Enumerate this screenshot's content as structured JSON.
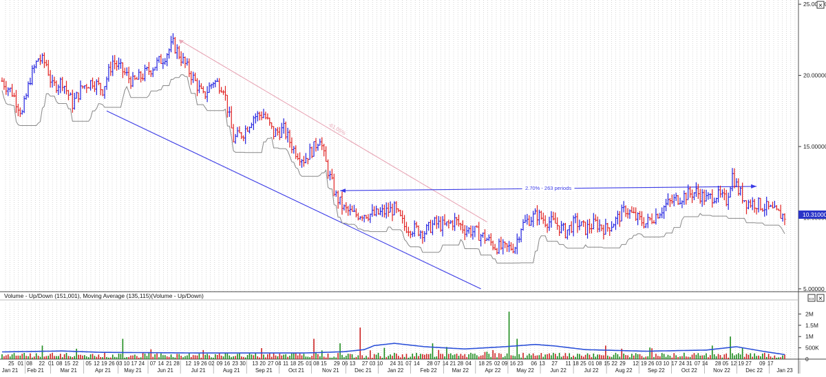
{
  "chart_data": [
    {
      "type": "bar",
      "ylim": [
        4.8,
        25.2
      ],
      "y_ticks": [
        "25.00000",
        "20.00000",
        "15.00000",
        "10.00000",
        "5.00000"
      ],
      "y_tick_values": [
        25,
        20,
        15,
        10,
        5
      ],
      "last_price_label": "10.31000",
      "last_price": 10.31,
      "price_anchors": [
        [
          0,
          19.6
        ],
        [
          5,
          18.8
        ],
        [
          10,
          17.3
        ],
        [
          14,
          19.8
        ],
        [
          18,
          21.2
        ],
        [
          22,
          20.8
        ],
        [
          25,
          19.2
        ],
        [
          30,
          19.6
        ],
        [
          35,
          18.0
        ],
        [
          40,
          19.2
        ],
        [
          45,
          19.6
        ],
        [
          50,
          19.0
        ],
        [
          55,
          21.0
        ],
        [
          60,
          20.3
        ],
        [
          65,
          19.5
        ],
        [
          70,
          20.0
        ],
        [
          75,
          20.6
        ],
        [
          80,
          21.2
        ],
        [
          85,
          22.2
        ],
        [
          90,
          21.0
        ],
        [
          95,
          19.8
        ],
        [
          100,
          18.5
        ],
        [
          105,
          19.6
        ],
        [
          110,
          19.2
        ],
        [
          115,
          15.5
        ],
        [
          120,
          16.0
        ],
        [
          125,
          17.1
        ],
        [
          130,
          17.3
        ],
        [
          135,
          15.9
        ],
        [
          140,
          16.2
        ],
        [
          145,
          14.8
        ],
        [
          150,
          14.1
        ],
        [
          155,
          14.9
        ],
        [
          158,
          15.7
        ],
        [
          160,
          14.3
        ],
        [
          163,
          12.8
        ],
        [
          166,
          11.5
        ],
        [
          170,
          10.6
        ],
        [
          175,
          10.2
        ],
        [
          180,
          10.3
        ],
        [
          185,
          10.2
        ],
        [
          190,
          10.4
        ],
        [
          195,
          10.6
        ],
        [
          200,
          9.4
        ],
        [
          205,
          9.2
        ],
        [
          210,
          9.0
        ],
        [
          215,
          9.6
        ],
        [
          220,
          9.4
        ],
        [
          225,
          9.8
        ],
        [
          230,
          9.2
        ],
        [
          235,
          9.0
        ],
        [
          240,
          8.6
        ],
        [
          245,
          8.0
        ],
        [
          250,
          7.8
        ],
        [
          255,
          8.0
        ],
        [
          258,
          9.4
        ],
        [
          262,
          9.9
        ],
        [
          266,
          10.2
        ],
        [
          270,
          9.8
        ],
        [
          275,
          9.6
        ],
        [
          280,
          9.0
        ],
        [
          285,
          9.7
        ],
        [
          290,
          9.2
        ],
        [
          295,
          9.6
        ],
        [
          300,
          9.2
        ],
        [
          305,
          9.8
        ],
        [
          310,
          10.6
        ],
        [
          315,
          10.0
        ],
        [
          320,
          9.6
        ],
        [
          325,
          10.2
        ],
        [
          330,
          10.9
        ],
        [
          335,
          11.3
        ],
        [
          340,
          11.6
        ],
        [
          345,
          11.8
        ],
        [
          350,
          11.3
        ],
        [
          355,
          11.6
        ],
        [
          360,
          11.2
        ],
        [
          363,
          13.0
        ],
        [
          366,
          11.9
        ],
        [
          370,
          11.1
        ],
        [
          375,
          11.0
        ],
        [
          380,
          10.7
        ],
        [
          385,
          10.3
        ],
        [
          389,
          10.1
        ]
      ],
      "n_bars": 390,
      "trendlines": [
        {
          "from": [
            88,
            22.5
          ],
          "to": [
            241,
            9.7
          ],
          "color": "#e8a6b6",
          "label": "-61.05%"
        },
        {
          "from": [
            52,
            17.5
          ],
          "to": [
            238,
            5.0
          ],
          "color": "#3a3ae6",
          "label": ""
        },
        {
          "from": [
            168,
            11.9
          ],
          "to": [
            375,
            12.2
          ],
          "color": "#3a3ae6",
          "label": "2.70% - 263 periods"
        }
      ]
    },
    {
      "type": "bar",
      "title": "Volume - Up/Down (151,001), Moving Average (135,115)(Volume - Up/Down)",
      "ylim": [
        0,
        2.5
      ],
      "y_ticks": [
        "2M",
        "1.5M",
        "1M",
        "500K",
        "0"
      ],
      "y_tick_values": [
        2,
        1.5,
        1,
        0.5,
        0
      ],
      "spikes": [
        [
          20,
          0.6
        ],
        [
          60,
          0.9
        ],
        [
          100,
          0.4
        ],
        [
          155,
          0.9
        ],
        [
          168,
          0.7
        ],
        [
          178,
          1.4
        ],
        [
          190,
          0.5
        ],
        [
          214,
          0.7
        ],
        [
          244,
          0.4
        ],
        [
          252,
          2.1
        ],
        [
          256,
          0.9
        ],
        [
          300,
          0.6
        ],
        [
          353,
          0.6
        ],
        [
          362,
          1.0
        ],
        [
          368,
          0.5
        ]
      ],
      "ma_anchors": [
        [
          0,
          0.32
        ],
        [
          30,
          0.36
        ],
        [
          50,
          0.3
        ],
        [
          100,
          0.27
        ],
        [
          150,
          0.27
        ],
        [
          170,
          0.33
        ],
        [
          180,
          0.42
        ],
        [
          185,
          0.6
        ],
        [
          195,
          0.7
        ],
        [
          210,
          0.55
        ],
        [
          230,
          0.45
        ],
        [
          250,
          0.55
        ],
        [
          265,
          0.65
        ],
        [
          275,
          0.58
        ],
        [
          290,
          0.42
        ],
        [
          320,
          0.35
        ],
        [
          350,
          0.4
        ],
        [
          365,
          0.55
        ],
        [
          378,
          0.35
        ],
        [
          389,
          0.2
        ]
      ]
    }
  ],
  "x_axis": {
    "day_labels": [
      [
        "25",
        18
      ],
      [
        "01",
        33
      ],
      [
        "08",
        47
      ],
      [
        "22",
        67
      ],
      [
        "01",
        82
      ],
      [
        "08",
        95
      ],
      [
        "15",
        108
      ],
      [
        "22",
        121
      ],
      [
        "05",
        142
      ],
      [
        "12",
        155
      ],
      [
        "19",
        167
      ],
      [
        "26",
        179
      ],
      [
        "03",
        191
      ],
      [
        "10",
        203
      ],
      [
        "17",
        215
      ],
      [
        "24",
        227
      ],
      [
        "07",
        245
      ],
      [
        "14",
        258
      ],
      [
        "21",
        271
      ],
      [
        "28",
        283
      ],
      [
        "12",
        302
      ],
      [
        "19",
        315
      ],
      [
        "26",
        327
      ],
      [
        "02",
        339
      ],
      [
        "09",
        352
      ],
      [
        "16",
        364
      ],
      [
        "23",
        377
      ],
      [
        "30",
        389
      ],
      [
        "13",
        409
      ],
      [
        "20",
        421
      ],
      [
        "27",
        434
      ],
      [
        "04",
        446
      ],
      [
        "11",
        458
      ],
      [
        "18",
        470
      ],
      [
        "25",
        482
      ],
      [
        "01",
        495
      ],
      [
        "08",
        507
      ],
      [
        "15",
        519
      ],
      [
        "29",
        540
      ],
      [
        "06",
        553
      ],
      [
        "13",
        565
      ],
      [
        "27",
        585
      ],
      [
        "03",
        597
      ],
      [
        "10",
        609
      ],
      [
        "24",
        630
      ],
      [
        "31",
        642
      ],
      [
        "07",
        655
      ],
      [
        "14",
        668
      ],
      [
        "28",
        689
      ],
      [
        "07",
        701
      ],
      [
        "14",
        714
      ],
      [
        "21",
        726
      ],
      [
        "28",
        738
      ],
      [
        "04",
        751
      ],
      [
        "18",
        772
      ],
      [
        "25",
        784
      ],
      [
        "02",
        797
      ],
      [
        "09",
        809
      ],
      [
        "16",
        822
      ],
      [
        "23",
        834
      ],
      [
        "06",
        856
      ],
      [
        "13",
        869
      ],
      [
        "27",
        889
      ],
      [
        "11",
        911
      ],
      [
        "18",
        923
      ],
      [
        "25",
        935
      ],
      [
        "01",
        948
      ],
      [
        "08",
        960
      ],
      [
        "15",
        973
      ],
      [
        "22",
        985
      ],
      [
        "29",
        998
      ],
      [
        "12",
        1019
      ],
      [
        "19",
        1032
      ],
      [
        "26",
        1044
      ],
      [
        "03",
        1056
      ],
      [
        "10",
        1068
      ],
      [
        "17",
        1081
      ],
      [
        "24",
        1093
      ],
      [
        "31",
        1105
      ],
      [
        "07",
        1118
      ],
      [
        "14",
        1130
      ],
      [
        "28",
        1151
      ],
      [
        "05",
        1163
      ],
      [
        "12",
        1176
      ],
      [
        "19",
        1188
      ],
      [
        "27",
        1200
      ],
      [
        "09",
        1222
      ],
      [
        "17",
        1235
      ]
    ],
    "month_labels": [
      [
        "Jan 21",
        16
      ],
      [
        "Feb 21",
        57
      ],
      [
        "Mar 21",
        110
      ],
      [
        "Apr 21",
        165
      ],
      [
        "May 21",
        213
      ],
      [
        "Jun 21",
        265
      ],
      [
        "Jul 21",
        318
      ],
      [
        "Aug 21",
        371
      ],
      [
        "Sep 21",
        423
      ],
      [
        "Oct 21",
        475
      ],
      [
        "Nov 21",
        530
      ],
      [
        "Dec 21",
        582
      ],
      [
        "Jan 22",
        634
      ],
      [
        "Feb 22",
        687
      ],
      [
        "Mar 22",
        738
      ],
      [
        "Apr 22",
        790
      ],
      [
        "May 22",
        842
      ],
      [
        "Jun 22",
        895
      ],
      [
        "Jul 22",
        948
      ],
      [
        "Aug 22",
        1000
      ],
      [
        "Sep 22",
        1052
      ],
      [
        "Oct 22",
        1105
      ],
      [
        "Nov 22",
        1157
      ],
      [
        "Dec 22",
        1209
      ],
      [
        "Jan 23",
        1258
      ]
    ]
  },
  "colors": {
    "up": "#2020e0",
    "down": "#e02020",
    "stop_line": "#888888",
    "ma_line": "#2a4fd8",
    "vol_up": "#1a8a1a",
    "vol_down": "#cc2020",
    "grid": "#b8b8b8"
  },
  "buttons": {
    "price_close": "×",
    "volume_minimize": "▭",
    "volume_close": "×"
  }
}
